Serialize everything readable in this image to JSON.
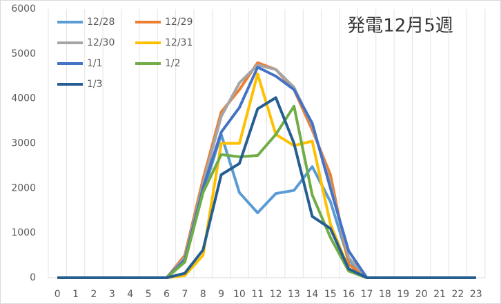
{
  "chart_data": {
    "type": "line",
    "title": "発電12月5週",
    "categories": [
      "0",
      "1",
      "2",
      "3",
      "4",
      "5",
      "6",
      "7",
      "8",
      "9",
      "10",
      "11",
      "12",
      "13",
      "14",
      "15",
      "16",
      "17",
      "18",
      "19",
      "20",
      "21",
      "22",
      "23"
    ],
    "ylim": [
      0,
      6000
    ],
    "yticks": [
      0,
      1000,
      2000,
      3000,
      4000,
      5000,
      6000
    ],
    "grid": "vertical",
    "legend": "top-left",
    "series": [
      {
        "name": "12/28",
        "color": "#5b9bd5",
        "values": [
          0,
          0,
          0,
          0,
          0,
          0,
          0,
          400,
          1900,
          3200,
          1900,
          1450,
          1880,
          1950,
          2480,
          1700,
          400,
          0,
          0,
          0,
          0,
          0,
          0,
          0
        ]
      },
      {
        "name": "12/29",
        "color": "#ed7d31",
        "values": [
          0,
          0,
          0,
          0,
          0,
          0,
          0,
          500,
          2200,
          3700,
          4200,
          4800,
          4650,
          4200,
          3300,
          2300,
          300,
          0,
          0,
          0,
          0,
          0,
          0,
          0
        ]
      },
      {
        "name": "12/30",
        "color": "#a5a5a5",
        "values": [
          0,
          0,
          0,
          0,
          0,
          0,
          0,
          450,
          2100,
          3600,
          4350,
          4750,
          4650,
          4250,
          3400,
          2100,
          450,
          0,
          0,
          0,
          0,
          0,
          0,
          0
        ]
      },
      {
        "name": "12/31",
        "color": "#ffc000",
        "values": [
          0,
          0,
          0,
          0,
          0,
          0,
          0,
          50,
          500,
          3000,
          3000,
          4550,
          3200,
          2950,
          3050,
          1200,
          200,
          0,
          0,
          0,
          0,
          0,
          0,
          0
        ]
      },
      {
        "name": "1/1",
        "color": "#4472c4",
        "values": [
          0,
          0,
          0,
          0,
          0,
          0,
          0,
          400,
          2000,
          3250,
          3800,
          4700,
          4500,
          4200,
          3450,
          2000,
          600,
          0,
          0,
          0,
          0,
          0,
          0,
          0
        ]
      },
      {
        "name": "1/2",
        "color": "#70ad47",
        "values": [
          0,
          0,
          0,
          0,
          0,
          0,
          0,
          350,
          1900,
          2750,
          2700,
          2730,
          3200,
          3830,
          1850,
          900,
          150,
          0,
          0,
          0,
          0,
          0,
          0,
          0
        ]
      },
      {
        "name": "1/3",
        "color": "#255e91",
        "values": [
          0,
          0,
          0,
          0,
          0,
          0,
          0,
          100,
          620,
          2300,
          2550,
          3770,
          4020,
          3000,
          1370,
          1100,
          200,
          0,
          0,
          0,
          0,
          0,
          0,
          0
        ]
      }
    ]
  }
}
